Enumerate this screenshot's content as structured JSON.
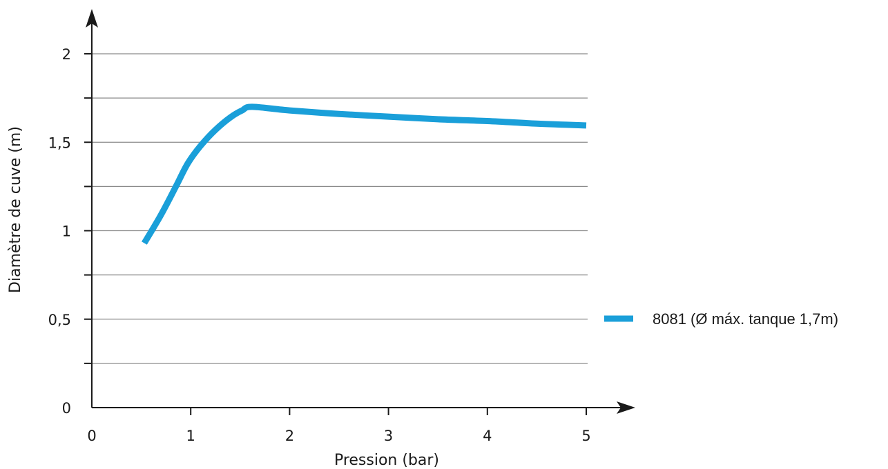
{
  "chart_data": {
    "type": "line",
    "title": "",
    "xlabel": "Pression (bar)",
    "ylabel": "Diamètre de cuve (m)",
    "xlim": [
      0,
      5
    ],
    "ylim": [
      0,
      2
    ],
    "x_ticks": [
      0,
      1,
      2,
      3,
      4,
      5
    ],
    "x_tick_labels": [
      "0",
      "1",
      "2",
      "3",
      "4",
      "5"
    ],
    "y_ticks": [
      0,
      0.5,
      1,
      1.5,
      2
    ],
    "y_tick_labels": [
      "0",
      "0,5",
      "1",
      "1,5",
      "2"
    ],
    "grid": "horizontal",
    "legend_position": "right",
    "series": [
      {
        "name": "8081 (Ø máx. tanque 1,7m)",
        "color": "#1a9fd9",
        "x": [
          0.53,
          0.7,
          0.85,
          0.97,
          1.1,
          1.25,
          1.4,
          1.52,
          1.62,
          2.0,
          2.5,
          3.0,
          3.5,
          4.0,
          4.5,
          5.0
        ],
        "y": [
          0.93,
          1.09,
          1.25,
          1.38,
          1.48,
          1.57,
          1.64,
          1.68,
          1.7,
          1.68,
          1.66,
          1.645,
          1.63,
          1.62,
          1.605,
          1.595
        ]
      }
    ]
  }
}
